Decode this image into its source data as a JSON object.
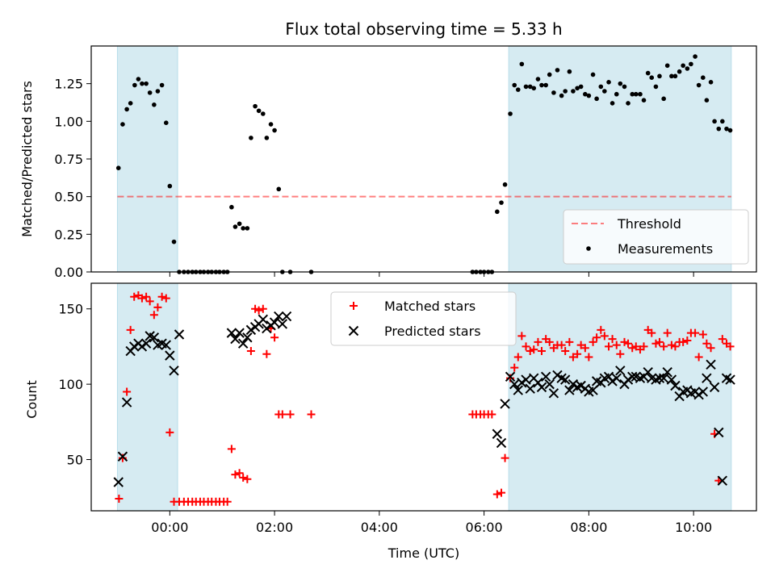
{
  "chart_data": [
    {
      "type": "scatter",
      "title": "Flux total observing time = 5.33 h",
      "xlabel": "",
      "ylabel": "Matched/Predicted stars",
      "xlim": [
        -1.5,
        11.2
      ],
      "ylim": [
        0,
        1.5
      ],
      "yticks": [
        0.0,
        0.25,
        0.5,
        0.75,
        1.0,
        1.25
      ],
      "ytick_labels": [
        "0.00",
        "0.25",
        "0.50",
        "0.75",
        "1.00",
        "1.25"
      ],
      "xticks": [
        0,
        2,
        4,
        6,
        8,
        10
      ],
      "shaded_ranges": [
        [
          -1.0,
          0.15
        ],
        [
          6.47,
          10.72
        ]
      ],
      "threshold": 0.5,
      "legend_position": "lower-right",
      "legend": [
        "Threshold",
        "Measurements"
      ],
      "series": [
        {
          "name": "Measurements",
          "x": [
            -0.98,
            -0.9,
            -0.82,
            -0.75,
            -0.67,
            -0.6,
            -0.53,
            -0.45,
            -0.38,
            -0.3,
            -0.23,
            -0.15,
            -0.07,
            0.0,
            0.08,
            0.18,
            0.27,
            0.35,
            0.43,
            0.5,
            0.58,
            0.65,
            0.73,
            0.8,
            0.88,
            0.95,
            1.03,
            1.1,
            1.18,
            1.25,
            1.33,
            1.4,
            1.48,
            1.55,
            1.63,
            1.7,
            1.78,
            1.85,
            1.93,
            2.0,
            2.08,
            2.15,
            2.3,
            2.7,
            5.78,
            5.85,
            5.93,
            6.0,
            6.08,
            6.15,
            6.25,
            6.33,
            6.4,
            6.5,
            6.58,
            6.65,
            6.72,
            6.8,
            6.88,
            6.95,
            7.03,
            7.1,
            7.18,
            7.25,
            7.33,
            7.4,
            7.48,
            7.55,
            7.63,
            7.7,
            7.78,
            7.85,
            7.93,
            8.0,
            8.08,
            8.15,
            8.23,
            8.3,
            8.38,
            8.45,
            8.53,
            8.6,
            8.68,
            8.75,
            8.83,
            8.9,
            8.98,
            9.05,
            9.13,
            9.2,
            9.28,
            9.35,
            9.43,
            9.5,
            9.58,
            9.65,
            9.73,
            9.8,
            9.88,
            9.95,
            10.03,
            10.1,
            10.18,
            10.25,
            10.33,
            10.4,
            10.48,
            10.55,
            10.63,
            10.7
          ],
          "y": [
            0.69,
            0.98,
            1.08,
            1.12,
            1.24,
            1.28,
            1.25,
            1.25,
            1.19,
            1.11,
            1.2,
            1.24,
            0.99,
            0.57,
            0.2,
            0.0,
            0.0,
            0.0,
            0.0,
            0.0,
            0.0,
            0.0,
            0.0,
            0.0,
            0.0,
            0.0,
            0.0,
            0.0,
            0.43,
            0.3,
            0.32,
            0.29,
            0.29,
            0.89,
            1.1,
            1.07,
            1.05,
            0.89,
            0.98,
            0.94,
            0.55,
            0.0,
            0.0,
            0.0,
            0.0,
            0.0,
            0.0,
            0.0,
            0.0,
            0.0,
            0.4,
            0.46,
            0.58,
            1.05,
            1.24,
            1.21,
            1.38,
            1.23,
            1.23,
            1.22,
            1.28,
            1.24,
            1.24,
            1.31,
            1.19,
            1.34,
            1.17,
            1.2,
            1.33,
            1.2,
            1.22,
            1.23,
            1.18,
            1.17,
            1.31,
            1.15,
            1.23,
            1.2,
            1.26,
            1.12,
            1.18,
            1.25,
            1.23,
            1.12,
            1.18,
            1.18,
            1.18,
            1.14,
            1.32,
            1.29,
            1.23,
            1.3,
            1.15,
            1.37,
            1.3,
            1.3,
            1.33,
            1.37,
            1.35,
            1.38,
            1.43,
            1.24,
            1.29,
            1.14,
            1.26,
            1.0,
            0.95,
            1.0,
            0.95,
            0.94
          ]
        },
        {
          "name": "Threshold",
          "x": [
            -1.0,
            10.72
          ],
          "y": [
            0.5,
            0.5
          ]
        }
      ]
    },
    {
      "type": "scatter",
      "title": "",
      "xlabel": "Time (UTC)",
      "ylabel": "Count",
      "xlim": [
        -1.5,
        11.2
      ],
      "ylim": [
        16,
        167
      ],
      "yticks": [
        50,
        100,
        150
      ],
      "ytick_labels": [
        "50",
        "100",
        "150"
      ],
      "xticks": [
        0,
        2,
        4,
        6,
        8,
        10
      ],
      "xtick_labels": [
        "00:00",
        "02:00",
        "04:00",
        "06:00",
        "08:00",
        "10:00"
      ],
      "shaded_ranges": [
        [
          -1.0,
          0.15
        ],
        [
          6.47,
          10.72
        ]
      ],
      "legend_position": "upper-center",
      "legend": [
        "Matched stars",
        "Predicted stars"
      ],
      "series": [
        {
          "name": "Matched stars",
          "marker": "plus",
          "x": [
            -0.97,
            -0.9,
            -0.82,
            -0.75,
            -0.68,
            -0.6,
            -0.53,
            -0.45,
            -0.38,
            -0.3,
            -0.23,
            -0.15,
            -0.07,
            0.0,
            0.08,
            0.18,
            0.27,
            0.35,
            0.43,
            0.5,
            0.58,
            0.65,
            0.73,
            0.8,
            0.88,
            0.95,
            1.03,
            1.1,
            1.18,
            1.25,
            1.33,
            1.4,
            1.48,
            1.55,
            1.63,
            1.7,
            1.78,
            1.85,
            1.93,
            2.0,
            2.08,
            2.15,
            2.3,
            2.7,
            5.78,
            5.85,
            5.93,
            6.0,
            6.08,
            6.15,
            6.25,
            6.33,
            6.4,
            6.5,
            6.58,
            6.65,
            6.72,
            6.8,
            6.88,
            6.95,
            7.03,
            7.1,
            7.18,
            7.25,
            7.33,
            7.4,
            7.48,
            7.55,
            7.63,
            7.7,
            7.78,
            7.85,
            7.93,
            8.0,
            8.08,
            8.15,
            8.23,
            8.3,
            8.38,
            8.45,
            8.53,
            8.6,
            8.68,
            8.75,
            8.83,
            8.9,
            8.98,
            9.05,
            9.13,
            9.2,
            9.28,
            9.35,
            9.43,
            9.5,
            9.58,
            9.65,
            9.73,
            9.8,
            9.88,
            9.95,
            10.03,
            10.1,
            10.18,
            10.25,
            10.33,
            10.4,
            10.48,
            10.55,
            10.63,
            10.7
          ],
          "y": [
            24,
            51,
            95,
            136,
            158,
            159,
            157,
            158,
            155,
            146,
            151,
            158,
            157,
            68,
            22,
            22,
            22,
            22,
            22,
            22,
            22,
            22,
            22,
            22,
            22,
            22,
            22,
            22,
            57,
            40,
            41,
            38,
            37,
            122,
            150,
            149,
            150,
            120,
            137,
            131,
            80,
            80,
            80,
            80,
            80,
            80,
            80,
            80,
            80,
            80,
            27,
            28,
            51,
            104,
            111,
            118,
            132,
            125,
            122,
            123,
            128,
            122,
            130,
            128,
            124,
            126,
            126,
            122,
            128,
            118,
            120,
            126,
            124,
            118,
            128,
            131,
            136,
            132,
            125,
            130,
            126,
            120,
            128,
            127,
            124,
            125,
            123,
            125,
            136,
            134,
            127,
            128,
            125,
            134,
            126,
            125,
            128,
            128,
            129,
            134,
            134,
            118,
            133,
            127,
            124,
            67,
            36,
            130,
            127,
            125
          ],
          "color": "#ff0000"
        },
        {
          "name": "Predicted stars",
          "marker": "x",
          "x": [
            -0.98,
            -0.9,
            -0.82,
            -0.75,
            -0.68,
            -0.6,
            -0.53,
            -0.45,
            -0.38,
            -0.3,
            -0.23,
            -0.15,
            -0.07,
            0.0,
            0.08,
            0.18,
            1.18,
            1.25,
            1.33,
            1.4,
            1.48,
            1.55,
            1.63,
            1.7,
            1.78,
            1.85,
            1.93,
            2.0,
            2.08,
            2.15,
            2.23,
            6.25,
            6.33,
            6.4,
            6.5,
            6.58,
            6.65,
            6.72,
            6.8,
            6.88,
            6.95,
            7.03,
            7.1,
            7.18,
            7.25,
            7.33,
            7.4,
            7.48,
            7.55,
            7.63,
            7.7,
            7.78,
            7.85,
            7.93,
            8.0,
            8.08,
            8.15,
            8.23,
            8.3,
            8.38,
            8.45,
            8.53,
            8.6,
            8.68,
            8.75,
            8.83,
            8.9,
            8.98,
            9.05,
            9.13,
            9.2,
            9.28,
            9.35,
            9.43,
            9.5,
            9.58,
            9.65,
            9.73,
            9.8,
            9.88,
            9.95,
            10.03,
            10.1,
            10.18,
            10.25,
            10.33,
            10.4,
            10.48,
            10.55,
            10.63,
            10.7
          ],
          "y": [
            35,
            52,
            88,
            122,
            125,
            127,
            125,
            127,
            132,
            131,
            126,
            127,
            126,
            119,
            109,
            133,
            134,
            130,
            134,
            127,
            131,
            136,
            138,
            140,
            143,
            137,
            139,
            141,
            145,
            140,
            145,
            67,
            61,
            87,
            105,
            100,
            96,
            101,
            103,
            97,
            104,
            101,
            98,
            105,
            100,
            94,
            106,
            104,
            103,
            96,
            100,
            98,
            99,
            97,
            95,
            96,
            102,
            101,
            104,
            105,
            102,
            104,
            109,
            100,
            103,
            105,
            105,
            104,
            105,
            108,
            104,
            103,
            104,
            104,
            108,
            103,
            99,
            92,
            95,
            96,
            94,
            95,
            93,
            95,
            104,
            113,
            98,
            68,
            36,
            104,
            103
          ],
          "color": "#000000"
        }
      ]
    }
  ]
}
